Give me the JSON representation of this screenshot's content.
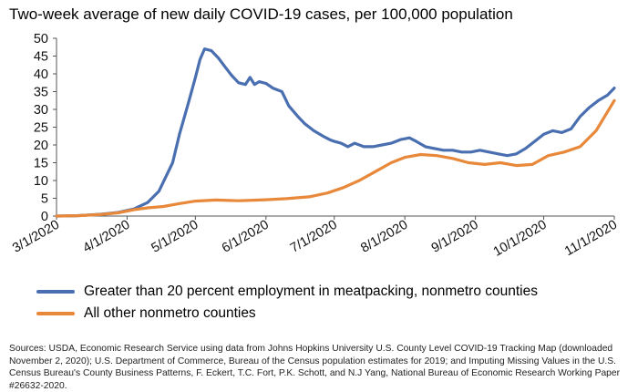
{
  "title": "Two-week average of new daily COVID-19 cases, per 100,000 population",
  "source_note": "Sources: USDA, Economic Research Service using data from Johns Hopkins University U.S. County Level COVID-19 Tracking Map (downloaded November 2, 2020); U.S. Department of Commerce, Bureau of the Census population estimates for 2019; and Imputing Missing Values in the U.S. Census Bureau's County Business Patterns, F. Eckert, T.C. Fort, P.K. Schott, and N.J Yang, National Bureau of Economic Research Working Paper #26632-2020.",
  "colors": {
    "meatpacking": "#4a6fb0",
    "other": "#e8883a",
    "axis": "#555555"
  },
  "chart_data": {
    "type": "line",
    "title": "Two-week average of new daily COVID-19 cases, per 100,000 population",
    "xlabel": "",
    "ylabel": "",
    "ylim": [
      0,
      50
    ],
    "yticks": [
      0,
      5,
      10,
      15,
      20,
      25,
      30,
      35,
      40,
      45,
      50
    ],
    "xlim": [
      "2020-03-01",
      "2020-11-01"
    ],
    "xtick_labels": [
      "3/1/2020",
      "4/1/2020",
      "5/1/2020",
      "6/1/2020",
      "7/1/2020",
      "8/1/2020",
      "9/1/2020",
      "10/1/2020",
      "11/1/2020"
    ],
    "grid": false,
    "legend_position": "bottom",
    "series": [
      {
        "name": "Greater than 20 percent employment in meatpacking, nonmetro counties",
        "color": "#4a6fb0",
        "points": [
          [
            "2020-03-01",
            0
          ],
          [
            "2020-03-10",
            0.1
          ],
          [
            "2020-03-20",
            0.5
          ],
          [
            "2020-03-28",
            1.0
          ],
          [
            "2020-04-04",
            2.0
          ],
          [
            "2020-04-10",
            3.8
          ],
          [
            "2020-04-15",
            7
          ],
          [
            "2020-04-18",
            11
          ],
          [
            "2020-04-21",
            15
          ],
          [
            "2020-04-24",
            23
          ],
          [
            "2020-04-28",
            32
          ],
          [
            "2020-05-01",
            39
          ],
          [
            "2020-05-03",
            44
          ],
          [
            "2020-05-05",
            47
          ],
          [
            "2020-05-08",
            46.5
          ],
          [
            "2020-05-11",
            44.5
          ],
          [
            "2020-05-14",
            42
          ],
          [
            "2020-05-17",
            39.5
          ],
          [
            "2020-05-20",
            37.5
          ],
          [
            "2020-05-23",
            37
          ],
          [
            "2020-05-25",
            39
          ],
          [
            "2020-05-27",
            37
          ],
          [
            "2020-05-29",
            37.8
          ],
          [
            "2020-06-01",
            37.3
          ],
          [
            "2020-06-04",
            36
          ],
          [
            "2020-06-08",
            35
          ],
          [
            "2020-06-11",
            31
          ],
          [
            "2020-06-15",
            28
          ],
          [
            "2020-06-18",
            26
          ],
          [
            "2020-06-22",
            24
          ],
          [
            "2020-06-26",
            22.5
          ],
          [
            "2020-06-29",
            21.5
          ],
          [
            "2020-07-01",
            21
          ],
          [
            "2020-07-04",
            20.5
          ],
          [
            "2020-07-07",
            19.5
          ],
          [
            "2020-07-10",
            20.5
          ],
          [
            "2020-07-14",
            19.5
          ],
          [
            "2020-07-18",
            19.5
          ],
          [
            "2020-07-22",
            20
          ],
          [
            "2020-07-26",
            20.5
          ],
          [
            "2020-07-30",
            21.5
          ],
          [
            "2020-08-03",
            22
          ],
          [
            "2020-08-06",
            21
          ],
          [
            "2020-08-10",
            19.5
          ],
          [
            "2020-08-14",
            19
          ],
          [
            "2020-08-18",
            18.5
          ],
          [
            "2020-08-22",
            18.5
          ],
          [
            "2020-08-26",
            18
          ],
          [
            "2020-08-30",
            18
          ],
          [
            "2020-09-03",
            18.5
          ],
          [
            "2020-09-07",
            18
          ],
          [
            "2020-09-11",
            17.5
          ],
          [
            "2020-09-15",
            17
          ],
          [
            "2020-09-19",
            17.5
          ],
          [
            "2020-09-23",
            19
          ],
          [
            "2020-09-27",
            21
          ],
          [
            "2020-10-01",
            23
          ],
          [
            "2020-10-05",
            24
          ],
          [
            "2020-10-09",
            23.5
          ],
          [
            "2020-10-13",
            24.5
          ],
          [
            "2020-10-17",
            28
          ],
          [
            "2020-10-21",
            30.5
          ],
          [
            "2020-10-25",
            32.5
          ],
          [
            "2020-10-29",
            34
          ],
          [
            "2020-11-01",
            36
          ]
        ]
      },
      {
        "name": "All other nonmetro counties",
        "color": "#e8883a",
        "points": [
          [
            "2020-03-01",
            0
          ],
          [
            "2020-03-10",
            0.1
          ],
          [
            "2020-03-20",
            0.4
          ],
          [
            "2020-03-28",
            0.9
          ],
          [
            "2020-04-04",
            1.8
          ],
          [
            "2020-04-10",
            2.3
          ],
          [
            "2020-04-17",
            2.7
          ],
          [
            "2020-04-24",
            3.5
          ],
          [
            "2020-05-01",
            4.2
          ],
          [
            "2020-05-10",
            4.5
          ],
          [
            "2020-05-20",
            4.3
          ],
          [
            "2020-06-01",
            4.6
          ],
          [
            "2020-06-10",
            4.9
          ],
          [
            "2020-06-20",
            5.4
          ],
          [
            "2020-06-28",
            6.5
          ],
          [
            "2020-07-05",
            8
          ],
          [
            "2020-07-12",
            10
          ],
          [
            "2020-07-19",
            12.5
          ],
          [
            "2020-07-26",
            15
          ],
          [
            "2020-08-01",
            16.5
          ],
          [
            "2020-08-08",
            17.3
          ],
          [
            "2020-08-15",
            17
          ],
          [
            "2020-08-22",
            16.2
          ],
          [
            "2020-08-29",
            15
          ],
          [
            "2020-09-05",
            14.5
          ],
          [
            "2020-09-12",
            15
          ],
          [
            "2020-09-19",
            14.2
          ],
          [
            "2020-09-26",
            14.5
          ],
          [
            "2020-10-03",
            17
          ],
          [
            "2020-10-10",
            18
          ],
          [
            "2020-10-17",
            19.5
          ],
          [
            "2020-10-24",
            24
          ],
          [
            "2020-11-01",
            32.5
          ]
        ]
      }
    ]
  }
}
